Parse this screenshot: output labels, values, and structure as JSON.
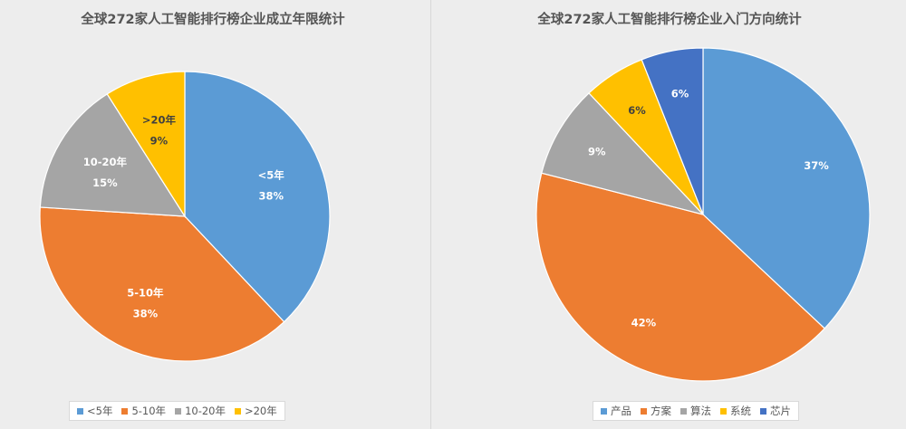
{
  "chart_data": [
    {
      "type": "pie",
      "title": "全球272家人工智能排行榜企业成立年限统计",
      "categories": [
        "<5年",
        "5-10年",
        "10-20年",
        ">20年"
      ],
      "values": [
        38,
        38,
        15,
        9
      ],
      "value_labels": [
        "38%",
        "38%",
        "15%",
        "9%"
      ],
      "colors": [
        "#5b9bd5",
        "#ed7d31",
        "#a5a5a5",
        "#ffc000"
      ],
      "show_category_in_label": true,
      "legend": "bottom"
    },
    {
      "type": "pie",
      "title": "全球272家人工智能排行榜企业入门方向统计",
      "categories": [
        "产品",
        "方案",
        "算法",
        "系统",
        "芯片"
      ],
      "values": [
        37,
        42,
        9,
        6,
        6
      ],
      "value_labels": [
        "37%",
        "42%",
        "9%",
        "6%",
        "6%"
      ],
      "colors": [
        "#5b9bd5",
        "#ed7d31",
        "#a5a5a5",
        "#ffc000",
        "#4472c4"
      ],
      "show_category_in_label": false,
      "legend": "bottom"
    }
  ]
}
